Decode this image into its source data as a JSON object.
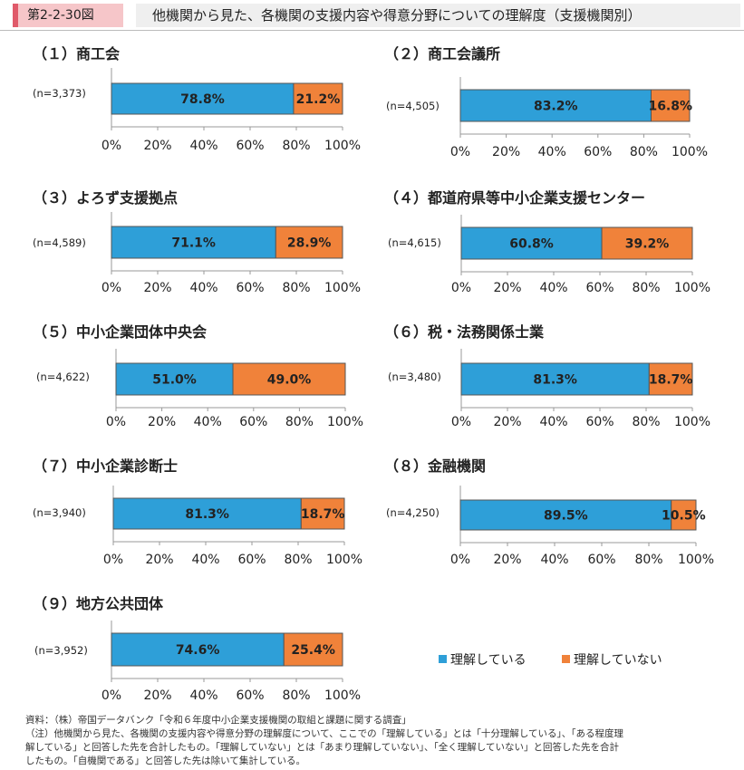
{
  "figure": {
    "label": "第2-2-30図",
    "title": "他機関から見た、各機関の支援内容や得意分野についての理解度（支援機関別）"
  },
  "legend": {
    "understand": "理解している",
    "not_understand": "理解していない"
  },
  "colors": {
    "understand": "#2e9fd8",
    "not_understand": "#f0823a",
    "border": "#555555"
  },
  "chart_data": [
    {
      "type": "bar",
      "orientation": "horizontal",
      "stacked": true,
      "title": "（１）商工会",
      "n_label": "(n=3,373)",
      "series": [
        {
          "name": "理解している",
          "values": [
            78.8
          ]
        },
        {
          "name": "理解していない",
          "values": [
            21.2
          ]
        }
      ],
      "value_labels": [
        "78.8%",
        "21.2%"
      ],
      "ticks": [
        "0%",
        "20%",
        "40%",
        "60%",
        "80%",
        "100%"
      ],
      "xlim": [
        0,
        100
      ]
    },
    {
      "type": "bar",
      "orientation": "horizontal",
      "stacked": true,
      "title": "（２）商工会議所",
      "n_label": "(n=4,505)",
      "series": [
        {
          "name": "理解している",
          "values": [
            83.2
          ]
        },
        {
          "name": "理解していない",
          "values": [
            16.8
          ]
        }
      ],
      "value_labels": [
        "83.2%",
        "16.8%"
      ],
      "ticks": [
        "0%",
        "20%",
        "40%",
        "60%",
        "80%",
        "100%"
      ],
      "xlim": [
        0,
        100
      ]
    },
    {
      "type": "bar",
      "orientation": "horizontal",
      "stacked": true,
      "title": "（３）よろず支援拠点",
      "n_label": "(n=4,589)",
      "series": [
        {
          "name": "理解している",
          "values": [
            71.1
          ]
        },
        {
          "name": "理解していない",
          "values": [
            28.9
          ]
        }
      ],
      "value_labels": [
        "71.1%",
        "28.9%"
      ],
      "ticks": [
        "0%",
        "20%",
        "40%",
        "60%",
        "80%",
        "100%"
      ],
      "xlim": [
        0,
        100
      ]
    },
    {
      "type": "bar",
      "orientation": "horizontal",
      "stacked": true,
      "title": "（４）都道府県等中小企業支援センター",
      "n_label": "(n=4,615)",
      "series": [
        {
          "name": "理解している",
          "values": [
            60.8
          ]
        },
        {
          "name": "理解していない",
          "values": [
            39.2
          ]
        }
      ],
      "value_labels": [
        "60.8%",
        "39.2%"
      ],
      "ticks": [
        "0%",
        "20%",
        "40%",
        "60%",
        "80%",
        "100%"
      ],
      "xlim": [
        0,
        100
      ]
    },
    {
      "type": "bar",
      "orientation": "horizontal",
      "stacked": true,
      "title": "（５）中小企業団体中央会",
      "n_label": "(n=4,622)",
      "series": [
        {
          "name": "理解している",
          "values": [
            51.0
          ]
        },
        {
          "name": "理解していない",
          "values": [
            49.0
          ]
        }
      ],
      "value_labels": [
        "51.0%",
        "49.0%"
      ],
      "ticks": [
        "0%",
        "20%",
        "40%",
        "60%",
        "80%",
        "100%"
      ],
      "xlim": [
        0,
        100
      ]
    },
    {
      "type": "bar",
      "orientation": "horizontal",
      "stacked": true,
      "title": "（６）税・法務関係士業",
      "n_label": "(n=3,480)",
      "series": [
        {
          "name": "理解している",
          "values": [
            81.3
          ]
        },
        {
          "name": "理解していない",
          "values": [
            18.7
          ]
        }
      ],
      "value_labels": [
        "81.3%",
        "18.7%"
      ],
      "ticks": [
        "0%",
        "20%",
        "40%",
        "60%",
        "80%",
        "100%"
      ],
      "xlim": [
        0,
        100
      ]
    },
    {
      "type": "bar",
      "orientation": "horizontal",
      "stacked": true,
      "title": "（７）中小企業診断士",
      "n_label": "(n=3,940)",
      "series": [
        {
          "name": "理解している",
          "values": [
            81.3
          ]
        },
        {
          "name": "理解していない",
          "values": [
            18.7
          ]
        }
      ],
      "value_labels": [
        "81.3%",
        "18.7%"
      ],
      "ticks": [
        "0%",
        "20%",
        "40%",
        "60%",
        "80%",
        "100%"
      ],
      "xlim": [
        0,
        100
      ]
    },
    {
      "type": "bar",
      "orientation": "horizontal",
      "stacked": true,
      "title": "（８）金融機関",
      "n_label": "(n=4,250)",
      "series": [
        {
          "name": "理解している",
          "values": [
            89.5
          ]
        },
        {
          "name": "理解していない",
          "values": [
            10.5
          ]
        }
      ],
      "value_labels": [
        "89.5%",
        "10.5%"
      ],
      "ticks": [
        "0%",
        "20%",
        "40%",
        "60%",
        "80%",
        "100%"
      ],
      "xlim": [
        0,
        100
      ]
    },
    {
      "type": "bar",
      "orientation": "horizontal",
      "stacked": true,
      "title": "（９）地方公共団体",
      "n_label": "(n=3,952)",
      "series": [
        {
          "name": "理解している",
          "values": [
            74.6
          ]
        },
        {
          "name": "理解していない",
          "values": [
            25.4
          ]
        }
      ],
      "value_labels": [
        "74.6%",
        "25.4%"
      ],
      "ticks": [
        "0%",
        "20%",
        "40%",
        "60%",
        "80%",
        "100%"
      ],
      "xlim": [
        0,
        100
      ]
    }
  ],
  "notes": {
    "source": "資料：（株）帝国データバンク「令和６年度中小企業支援機関の取組と課題に関する調査」",
    "line1": "（注）他機関から見た、各機関の支援内容や得意分野の理解度について、ここでの「理解している」とは「十分理解している」、「ある程度理",
    "line2": "解している」と回答した先を合計したもの。「理解していない」とは「あまり理解していない」、「全く理解していない」と回答した先を合計",
    "line3": "したもの。「自機関である」と回答した先は除いて集計している。"
  }
}
